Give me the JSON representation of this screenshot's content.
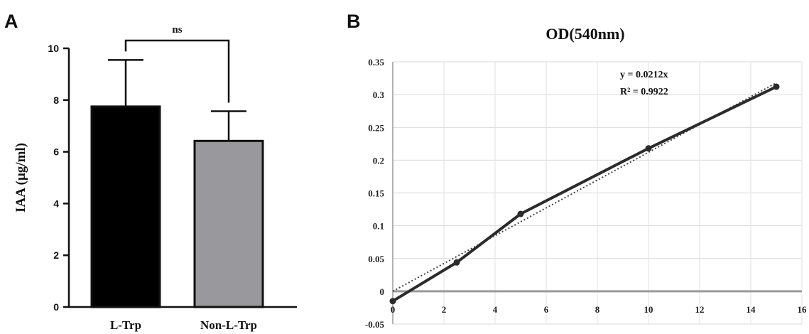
{
  "chart_data": [
    {
      "panel": "A",
      "type": "bar",
      "categories": [
        "L-Trp",
        "Non-L-Trp"
      ],
      "values": [
        7.75,
        6.42
      ],
      "error_bars": [
        1.8,
        1.15
      ],
      "bar_colors": [
        "#000000",
        "#98989d"
      ],
      "ylabel": "IAA (µg/ml)",
      "ylim": [
        0,
        10
      ],
      "yticks": [
        0,
        2,
        4,
        6,
        8,
        10
      ],
      "significance": "ns",
      "grid": false
    },
    {
      "panel": "B",
      "type": "line",
      "title": "OD(540nm)",
      "series": [
        {
          "x": [
            0,
            2.5,
            5,
            10,
            15
          ],
          "y": [
            -0.015,
            0.044,
            0.118,
            0.218,
            0.312
          ]
        }
      ],
      "trendline": {
        "slope": 0.0212,
        "intercept": 0,
        "x_range": [
          0,
          15
        ]
      },
      "annotations": [
        "y = 0.0212x",
        "R² = 0.9922"
      ],
      "xlim": [
        0,
        16
      ],
      "xticks": [
        "0",
        "2",
        "4",
        "6",
        "8",
        "10",
        "12",
        "14",
        "16"
      ],
      "ylim": [
        -0.05,
        0.35
      ],
      "yticks": [
        "-0.05",
        "0",
        "0.05",
        "0.1",
        "0.15",
        "0.2",
        "0.25",
        "0.3",
        "0.35"
      ],
      "grid": true,
      "line_color": "#2b2b2b",
      "trend_color": "#444444"
    }
  ]
}
